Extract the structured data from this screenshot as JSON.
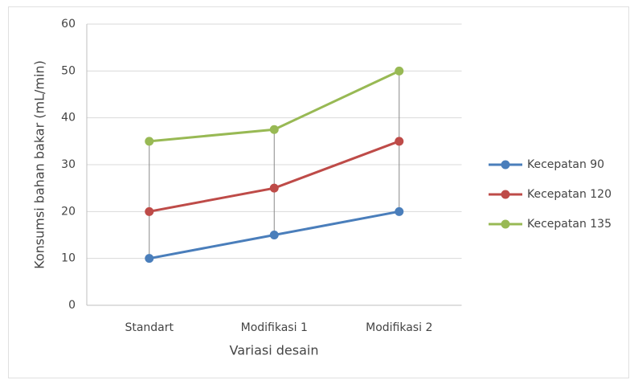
{
  "chart_data": {
    "type": "line",
    "x_label": "Variasi desain",
    "y_label": "Konsumsi bahan bakar (mL/min)",
    "categories": [
      "Standart",
      "Modifikasi 1",
      "Modifikasi 2"
    ],
    "series": [
      {
        "name": "Kecepatan 90",
        "color": "#4a7ebb",
        "values": [
          10,
          15,
          20
        ]
      },
      {
        "name": "Kecepatan 120",
        "color": "#be4b48",
        "values": [
          20,
          25,
          35
        ]
      },
      {
        "name": "Kecepatan 135",
        "color": "#98b954",
        "values": [
          35,
          37.5,
          50
        ]
      }
    ],
    "ylim": [
      0,
      60
    ],
    "yticks": [
      0,
      10,
      20,
      30,
      40,
      50,
      60
    ],
    "grid": true,
    "high_low_lines": true,
    "legend": "right"
  }
}
